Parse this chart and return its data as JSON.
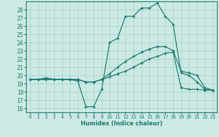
{
  "xlabel": "Humidex (Indice chaleur)",
  "bg_color": "#cce9e4",
  "grid_color": "#a8d4cc",
  "line_color": "#1a7a6e",
  "xlim": [
    -0.5,
    23.5
  ],
  "ylim": [
    15.5,
    29.0
  ],
  "xticks": [
    0,
    1,
    2,
    3,
    4,
    5,
    6,
    7,
    8,
    9,
    10,
    11,
    12,
    13,
    14,
    15,
    16,
    17,
    18,
    19,
    20,
    21,
    22,
    23
  ],
  "yticks": [
    16,
    17,
    18,
    19,
    20,
    21,
    22,
    23,
    24,
    25,
    26,
    27,
    28
  ],
  "line1_x": [
    0,
    1,
    2,
    3,
    4,
    5,
    6,
    7,
    8,
    9,
    10,
    11,
    12,
    13,
    14,
    15,
    16,
    17,
    18,
    19,
    20,
    21,
    22,
    23
  ],
  "line1_y": [
    19.5,
    19.5,
    19.7,
    19.5,
    19.5,
    19.5,
    19.3,
    16.2,
    16.2,
    18.3,
    24.0,
    24.5,
    27.2,
    27.2,
    28.2,
    28.2,
    28.8,
    27.2,
    26.2,
    20.3,
    20.0,
    19.2,
    18.3,
    18.2
  ],
  "line2_x": [
    0,
    1,
    2,
    3,
    4,
    5,
    6,
    7,
    8,
    9,
    10,
    11,
    12,
    13,
    14,
    15,
    16,
    17,
    18,
    19,
    20,
    21,
    22,
    23
  ],
  "line2_y": [
    19.5,
    19.5,
    19.5,
    19.5,
    19.5,
    19.5,
    19.5,
    19.2,
    19.2,
    19.5,
    20.2,
    21.0,
    21.7,
    22.3,
    22.8,
    23.2,
    23.5,
    23.5,
    23.0,
    20.5,
    20.3,
    20.0,
    18.5,
    18.2
  ],
  "line3_x": [
    0,
    1,
    2,
    3,
    4,
    5,
    6,
    7,
    8,
    9,
    10,
    11,
    12,
    13,
    14,
    15,
    16,
    17,
    18,
    19,
    20,
    21,
    22,
    23
  ],
  "line3_y": [
    19.5,
    19.5,
    19.5,
    19.5,
    19.5,
    19.5,
    19.5,
    19.2,
    19.2,
    19.5,
    19.8,
    20.2,
    20.5,
    21.0,
    21.5,
    22.0,
    22.3,
    22.7,
    22.8,
    18.5,
    18.3,
    18.3,
    18.2,
    18.2
  ]
}
